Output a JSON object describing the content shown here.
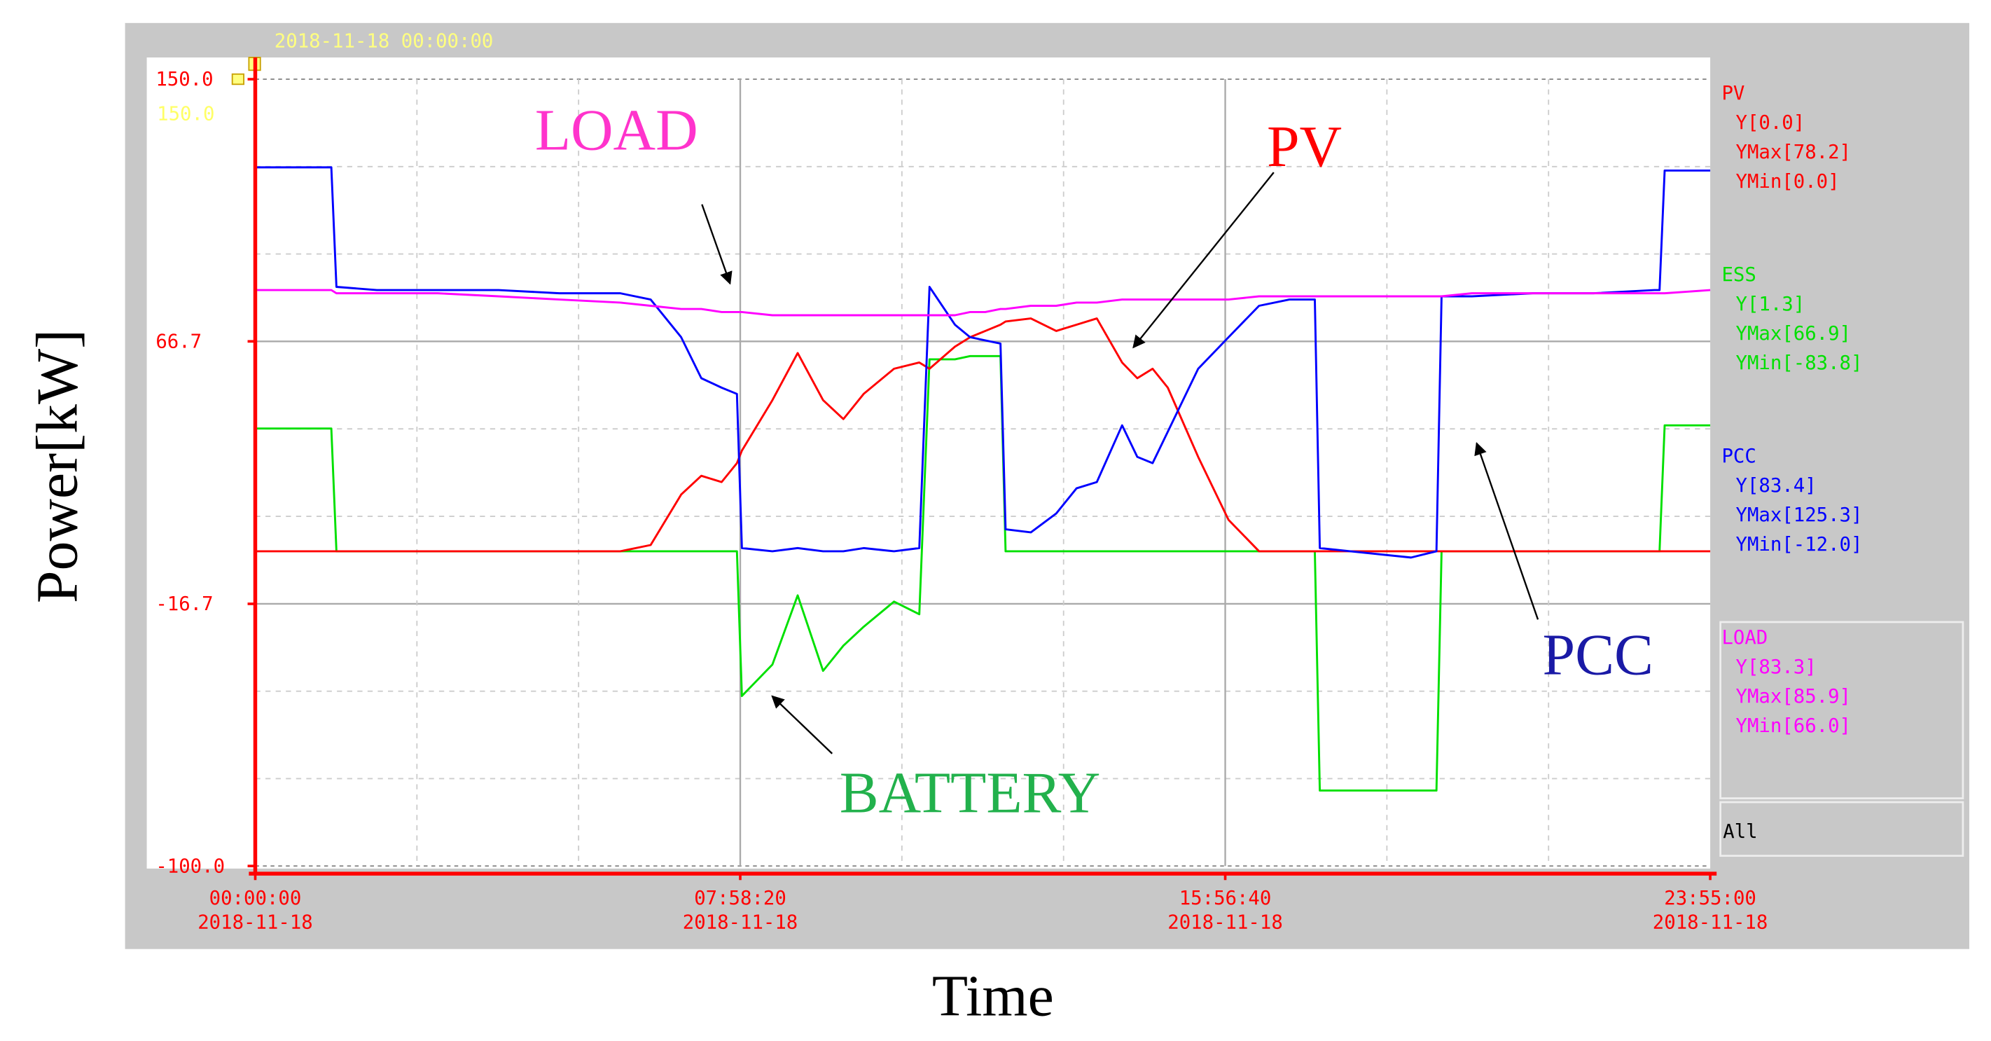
{
  "chart_data": {
    "type": "line",
    "y_label": "Power[kW]",
    "x_label": "Time",
    "cursor_time": "2018-11-18 00:00:00",
    "cursor_value": "150.0",
    "all_label": "All",
    "xlim": [
      "00:00:00",
      "23:55:00"
    ],
    "xticks": [
      "00:00:00",
      "07:58:20",
      "15:56:40",
      "23:55:00"
    ],
    "xtick_dates": [
      "2018-11-18",
      "2018-11-18",
      "2018-11-18",
      "2018-11-18"
    ],
    "ylim": [
      -100,
      150
    ],
    "yticks": [
      {
        "value": 150,
        "label": "150.0"
      },
      66.7,
      -16.7,
      {
        "value": -100,
        "label": "-100.0"
      }
    ],
    "grid": true,
    "x": [
      "00:00",
      "01:15",
      "01:20",
      "02:00",
      "03:00",
      "04:00",
      "05:00",
      "06:00",
      "06:30",
      "07:00",
      "07:20",
      "07:40",
      "07:55",
      "08:00",
      "08:30",
      "08:55",
      "09:20",
      "09:40",
      "10:00",
      "10:30",
      "10:55",
      "11:05",
      "11:30",
      "11:45",
      "12:00",
      "12:15",
      "12:20",
      "12:45",
      "13:10",
      "13:30",
      "13:50",
      "14:15",
      "14:30",
      "14:45",
      "15:00",
      "15:30",
      "16:00",
      "16:30",
      "17:00",
      "17:25",
      "17:30",
      "18:00",
      "19:00",
      "19:25",
      "19:30",
      "20:00",
      "21:00",
      "22:00",
      "23:00",
      "23:05",
      "23:10",
      "23:55"
    ],
    "series": [
      {
        "name": "ESS",
        "color": "#00e000",
        "stats": [
          "Y[1.3]",
          "YMax[66.9]",
          "YMin[-83.8]"
        ],
        "values": [
          39,
          39,
          0,
          0,
          0,
          0,
          0,
          0,
          0,
          0,
          0,
          0,
          0,
          -46,
          -36,
          -14,
          -38,
          -30,
          -24,
          -16,
          -20,
          61,
          61,
          62,
          62,
          62,
          0,
          0,
          0,
          0,
          0,
          0,
          0,
          0,
          0,
          0,
          0,
          0,
          0,
          0,
          -76,
          -76,
          -76,
          -76,
          0,
          0,
          0,
          0,
          0,
          0,
          40,
          40
        ]
      },
      {
        "name": "PV",
        "color": "#ff0000",
        "stats": [
          "Y[0.0]",
          "YMax[78.2]",
          "YMin[0.0]"
        ],
        "values": [
          0,
          0,
          0,
          0,
          0,
          0,
          0,
          0,
          2,
          18,
          24,
          22,
          28,
          32,
          48,
          63,
          48,
          42,
          50,
          58,
          60,
          58,
          65,
          68,
          70,
          72,
          73,
          74,
          70,
          72,
          74,
          60,
          55,
          58,
          52,
          30,
          10,
          0,
          0,
          0,
          0,
          0,
          0,
          0,
          0,
          0,
          0,
          0,
          0,
          0,
          0,
          0
        ]
      },
      {
        "name": "PCC",
        "color": "#0000ff",
        "stats": [
          "Y[83.4]",
          "YMax[125.3]",
          "YMin[-12.0]"
        ],
        "values": [
          122,
          122,
          84,
          83,
          83,
          83,
          82,
          82,
          80,
          68,
          55,
          52,
          50,
          1,
          0,
          1,
          0,
          0,
          1,
          0,
          1,
          84,
          72,
          68,
          67,
          66,
          7,
          6,
          12,
          20,
          22,
          40,
          30,
          28,
          38,
          58,
          68,
          78,
          80,
          80,
          1,
          0,
          -2,
          0,
          81,
          81,
          82,
          82,
          83,
          83,
          121,
          121
        ]
      },
      {
        "name": "LOAD",
        "color": "#ff00ff",
        "stats": [
          "Y[83.3]",
          "YMax[85.9]",
          "YMin[66.0]"
        ],
        "values": [
          83,
          83,
          82,
          82,
          82,
          81,
          80,
          79,
          78,
          77,
          77,
          76,
          76,
          76,
          75,
          75,
          75,
          75,
          75,
          75,
          75,
          75,
          75,
          76,
          76,
          77,
          77,
          78,
          78,
          79,
          79,
          80,
          80,
          80,
          80,
          80,
          80,
          81,
          81,
          81,
          81,
          81,
          81,
          81,
          81,
          82,
          82,
          82,
          82,
          82,
          82,
          83
        ]
      }
    ],
    "annotations": [
      {
        "text": "LOAD",
        "color": "#ff33cc"
      },
      {
        "text": "PV",
        "color": "#ff0000"
      },
      {
        "text": "BATTERY",
        "color": "#22b14c"
      },
      {
        "text": "PCC",
        "color": "#1a1aa6"
      }
    ]
  }
}
